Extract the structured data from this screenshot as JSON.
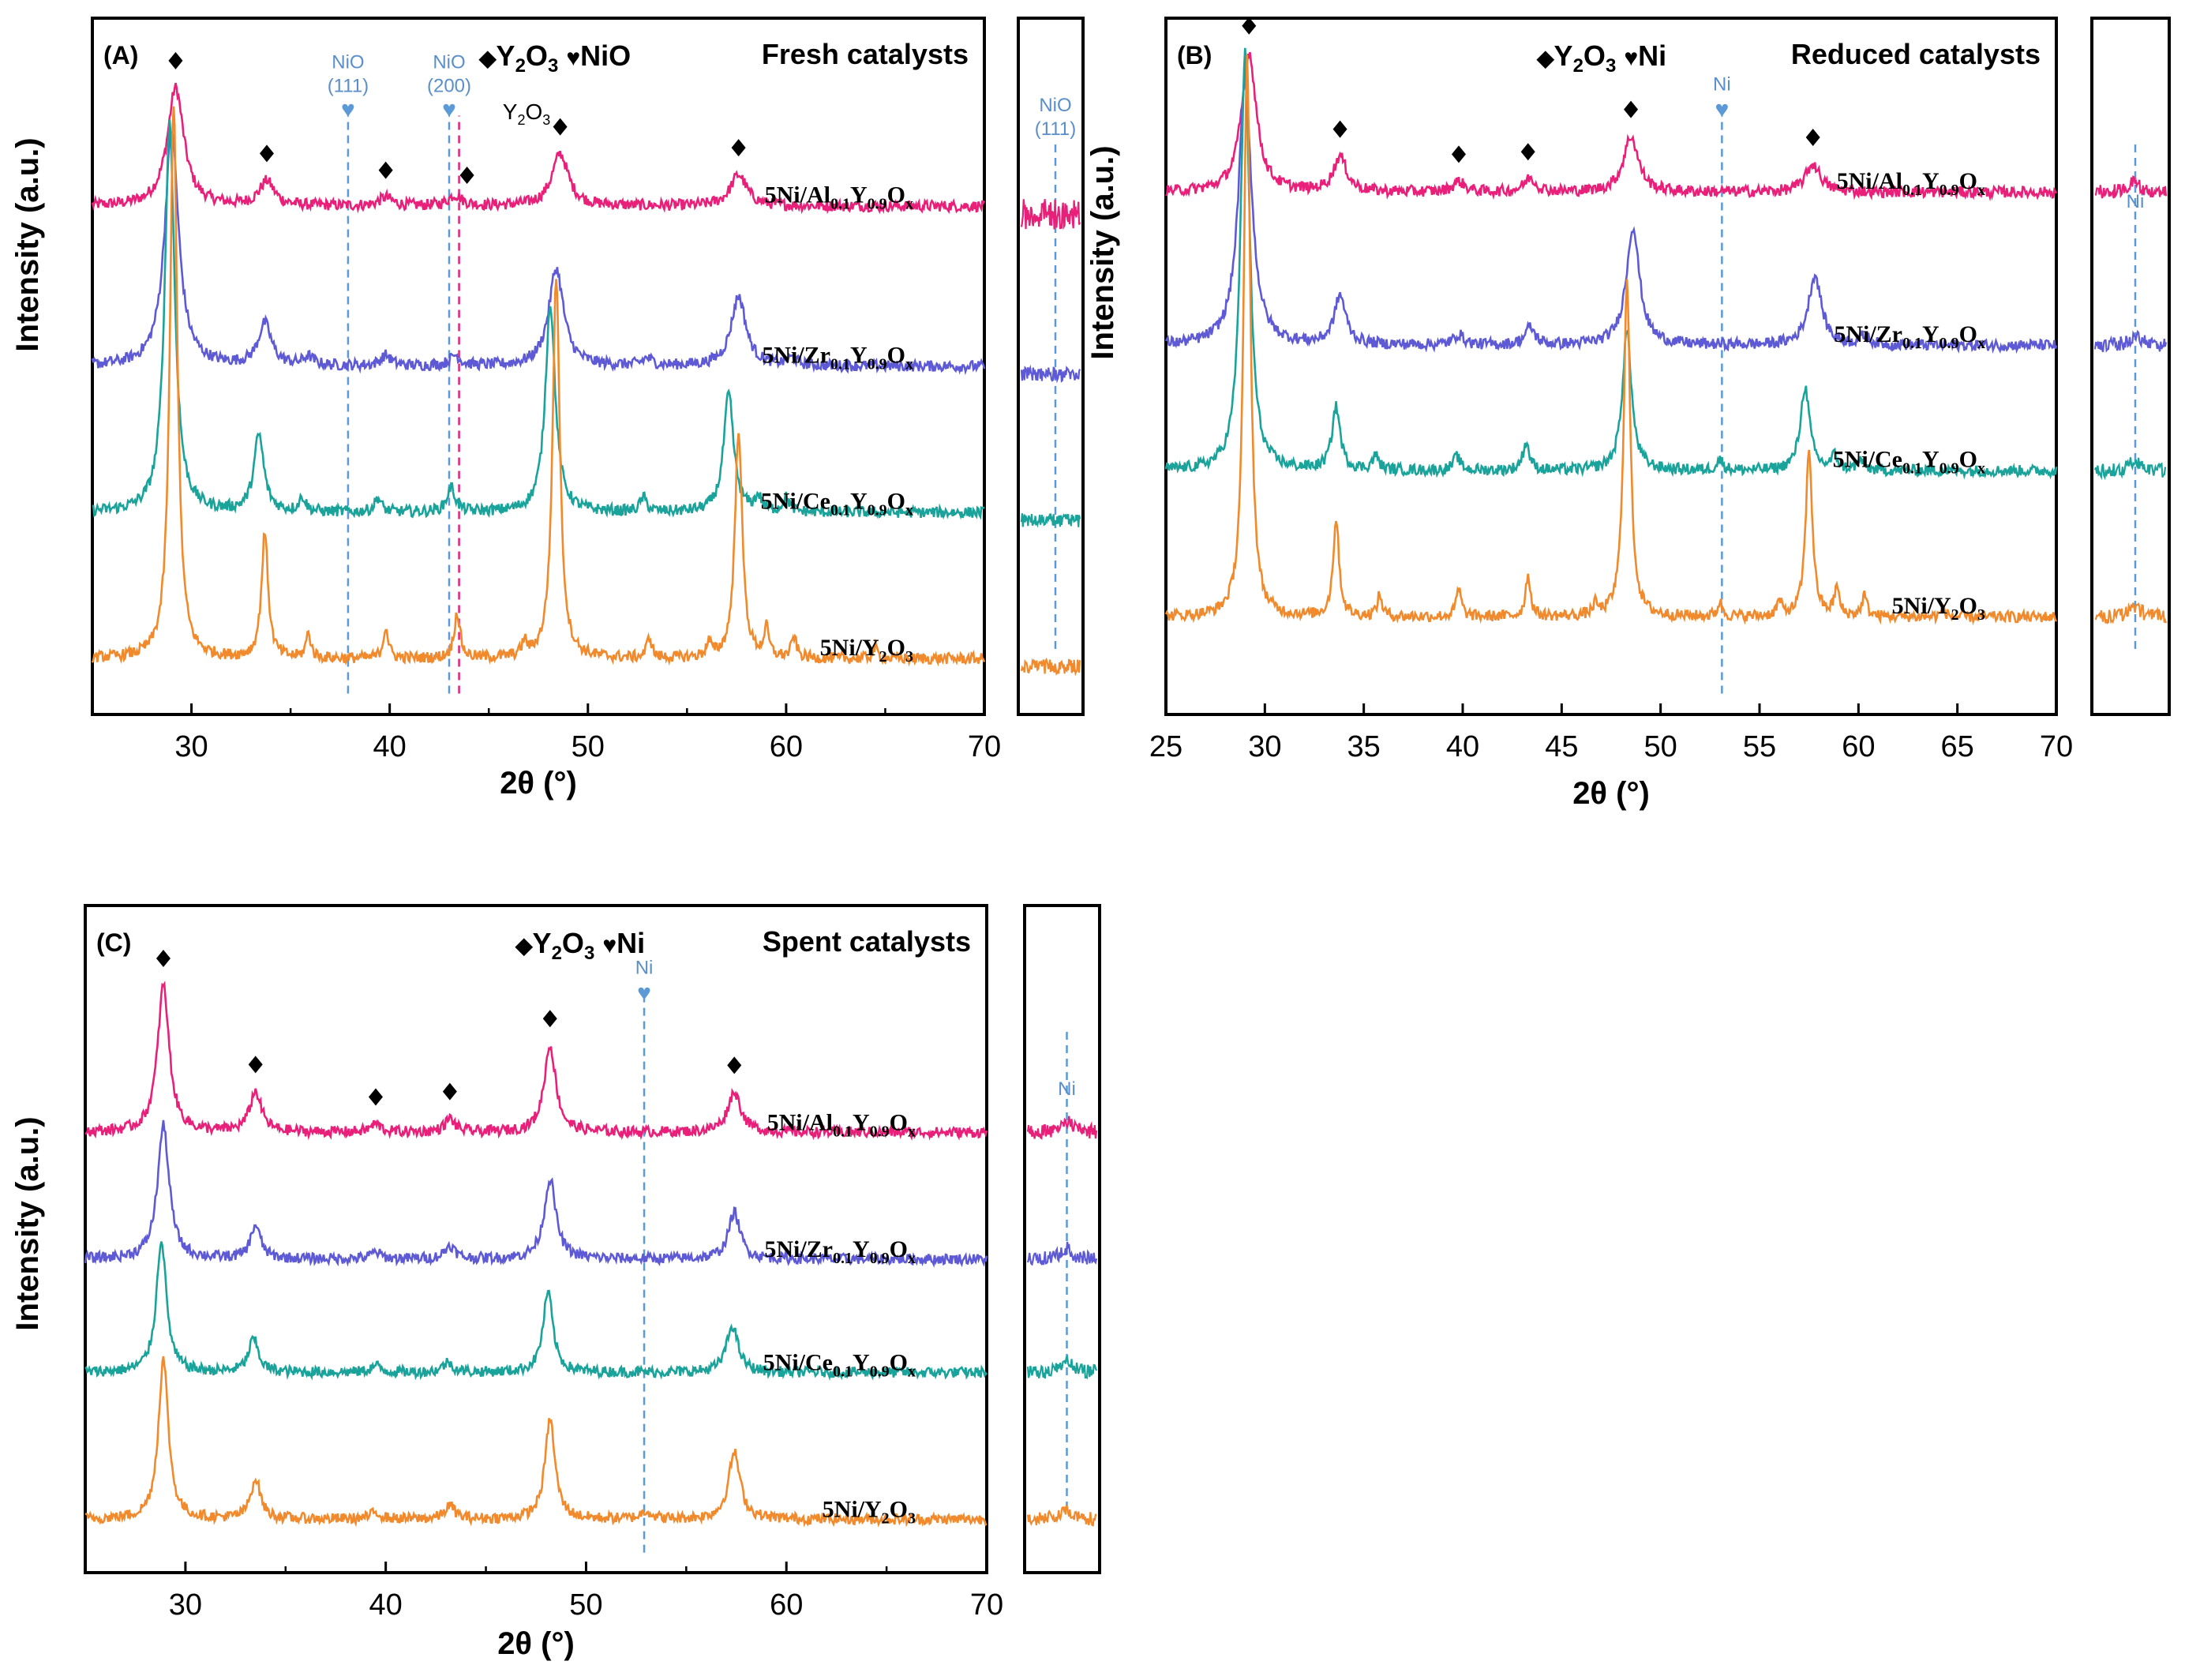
{
  "colors": {
    "pink": "#e8207a",
    "purple": "#5e5ad6",
    "teal": "#1aa39b",
    "orange": "#f08a2c",
    "ref_blue": "#5b9ad6",
    "ref_pink": "#e8207a",
    "ref_text": "#5b8fc9",
    "axis": "#000000"
  },
  "chart_data": [
    {
      "type": "line",
      "panel_label": "(A)",
      "title": "Fresh catalysts",
      "legend": {
        "y2o3_symbol": "◆",
        "y2o3_text": "Y",
        "y2o3_sub1": "2",
        "y2o3_o": "O",
        "y2o3_sub2": "3",
        "phase_symbol": "♥",
        "phase_text": "NiO"
      },
      "xlabel": "2θ (°)",
      "ylabel": "Intensity (a.u.)",
      "xlim": [
        25,
        70
      ],
      "xticks": [
        30,
        40,
        50,
        60,
        70
      ],
      "series": [
        {
          "name": "5Ni/Al0.1Y0.9Ox",
          "label_parts": [
            "5Ni/Al",
            "0.1",
            "Y",
            "0.9",
            "O",
            "x"
          ],
          "color_key": "pink",
          "baseline": 0.73,
          "peaks": [
            [
              29.2,
              0.17,
              0.5
            ],
            [
              33.8,
              0.035,
              0.45
            ],
            [
              39.8,
              0.012,
              0.4
            ],
            [
              43.3,
              0.015,
              0.4
            ],
            [
              48.6,
              0.075,
              0.5
            ],
            [
              57.6,
              0.045,
              0.5
            ]
          ]
        },
        {
          "name": "5Ni/Zr0.1Y0.9Ox",
          "label_parts": [
            "5Ni/Zr",
            "0.1",
            "Y",
            "0.9",
            "O",
            "x"
          ],
          "color_key": "purple",
          "baseline": 0.5,
          "peaks": [
            [
              29.0,
              0.34,
              0.42
            ],
            [
              33.7,
              0.06,
              0.4
            ],
            [
              35.9,
              0.012,
              0.3
            ],
            [
              39.8,
              0.015,
              0.3
            ],
            [
              43.3,
              0.015,
              0.3
            ],
            [
              48.4,
              0.14,
              0.45
            ],
            [
              53.0,
              0.01,
              0.3
            ],
            [
              57.6,
              0.1,
              0.45
            ],
            [
              60.3,
              0.01,
              0.3
            ]
          ]
        },
        {
          "name": "5Ni/Ce0.1Y0.9Ox",
          "label_parts": [
            "5Ni/Ce",
            "0.1",
            "Y",
            "0.9",
            "O",
            "x"
          ],
          "color_key": "teal",
          "baseline": 0.29,
          "peaks": [
            [
              28.9,
              0.56,
              0.3
            ],
            [
              33.4,
              0.11,
              0.3
            ],
            [
              35.6,
              0.02,
              0.2
            ],
            [
              39.4,
              0.02,
              0.2
            ],
            [
              43.1,
              0.035,
              0.25
            ],
            [
              48.1,
              0.3,
              0.3
            ],
            [
              52.8,
              0.02,
              0.2
            ],
            [
              57.1,
              0.17,
              0.3
            ],
            [
              58.6,
              0.02,
              0.2
            ],
            [
              60.0,
              0.02,
              0.2
            ]
          ]
        },
        {
          "name": "5Ni/Y2O3",
          "label_parts": [
            "5Ni/Y",
            "2",
            "O",
            "3",
            "",
            ""
          ],
          "color_key": "orange",
          "baseline": 0.08,
          "peaks": [
            [
              29.1,
              0.8,
              0.22
            ],
            [
              33.7,
              0.18,
              0.2
            ],
            [
              35.9,
              0.035,
              0.15
            ],
            [
              39.8,
              0.045,
              0.15
            ],
            [
              43.4,
              0.065,
              0.18
            ],
            [
              46.8,
              0.02,
              0.15
            ],
            [
              48.4,
              0.55,
              0.22
            ],
            [
              53.1,
              0.03,
              0.15
            ],
            [
              56.1,
              0.02,
              0.15
            ],
            [
              57.6,
              0.33,
              0.22
            ],
            [
              59.0,
              0.04,
              0.15
            ],
            [
              60.4,
              0.03,
              0.15
            ],
            [
              64.5,
              0.015,
              0.15
            ]
          ]
        }
      ],
      "diamonds": [
        29.2,
        33.8,
        39.8,
        43.9,
        48.6,
        57.6
      ],
      "ref_lines": [
        {
          "x": 37.9,
          "color_key": "ref_blue",
          "label": "NiO",
          "label2": "(111)"
        },
        {
          "x": 43.0,
          "color_key": "ref_blue",
          "label": "NiO",
          "label2": "(200)"
        },
        {
          "x": 43.5,
          "color_key": "ref_pink",
          "label": "",
          "label2": ""
        }
      ],
      "annotation_y2o3": {
        "t1": "Y",
        "s1": "2",
        "t2": "O",
        "s2": "3"
      },
      "inset": {
        "label": "NiO",
        "label2": "(111)"
      }
    },
    {
      "type": "line",
      "panel_label": "(B)",
      "title": "Reduced catalysts",
      "legend": {
        "y2o3_symbol": "◆",
        "y2o3_text": "Y",
        "y2o3_sub1": "2",
        "y2o3_o": "O",
        "y2o3_sub2": "3",
        "phase_symbol": "♥",
        "phase_text": "Ni"
      },
      "xlabel": "2θ (°)",
      "ylabel": "Intensity (a.u.)",
      "xlim": [
        25,
        70
      ],
      "xticks": [
        25,
        30,
        35,
        40,
        45,
        50,
        55,
        60,
        65,
        70
      ],
      "series": [
        {
          "name": "5Ni/Al0.1Y0.9Ox",
          "label_parts": [
            "5Ni/Al",
            "0.1",
            "Y",
            "0.9",
            "O",
            "x"
          ],
          "color_key": "pink",
          "baseline": 0.75,
          "peaks": [
            [
              29.2,
              0.2,
              0.45
            ],
            [
              33.8,
              0.05,
              0.4
            ],
            [
              39.8,
              0.015,
              0.35
            ],
            [
              43.4,
              0.02,
              0.35
            ],
            [
              48.5,
              0.08,
              0.45
            ],
            [
              57.7,
              0.04,
              0.45
            ]
          ]
        },
        {
          "name": "5Ni/Zr0.1Y0.9Ox",
          "label_parts": [
            "5Ni/Zr",
            "0.1",
            "Y",
            "0.9",
            "O",
            "x"
          ],
          "color_key": "purple",
          "baseline": 0.53,
          "peaks": [
            [
              29.0,
              0.38,
              0.4
            ],
            [
              33.8,
              0.07,
              0.35
            ],
            [
              39.8,
              0.015,
              0.3
            ],
            [
              43.4,
              0.025,
              0.3
            ],
            [
              48.6,
              0.17,
              0.4
            ],
            [
              57.8,
              0.1,
              0.4
            ],
            [
              60.3,
              0.012,
              0.3
            ]
          ]
        },
        {
          "name": "5Ni/Ce0.1Y0.9Ox",
          "label_parts": [
            "5Ni/Ce",
            "0.1",
            "Y",
            "0.9",
            "O",
            "x"
          ],
          "color_key": "teal",
          "baseline": 0.35,
          "peaks": [
            [
              29.0,
              0.6,
              0.28
            ],
            [
              33.6,
              0.09,
              0.25
            ],
            [
              35.6,
              0.02,
              0.2
            ],
            [
              39.7,
              0.02,
              0.2
            ],
            [
              43.2,
              0.04,
              0.2
            ],
            [
              48.3,
              0.2,
              0.28
            ],
            [
              53.0,
              0.015,
              0.2
            ],
            [
              57.3,
              0.12,
              0.28
            ],
            [
              58.8,
              0.02,
              0.2
            ],
            [
              60.1,
              0.015,
              0.2
            ]
          ]
        },
        {
          "name": "5Ni/Y2O3",
          "label_parts": [
            "5Ni/Y",
            "2",
            "O",
            "3",
            "",
            ""
          ],
          "color_key": "orange",
          "baseline": 0.14,
          "peaks": [
            [
              29.1,
              0.8,
              0.2
            ],
            [
              33.6,
              0.14,
              0.18
            ],
            [
              35.8,
              0.03,
              0.15
            ],
            [
              39.8,
              0.04,
              0.15
            ],
            [
              43.3,
              0.06,
              0.15
            ],
            [
              46.7,
              0.015,
              0.15
            ],
            [
              48.3,
              0.48,
              0.2
            ],
            [
              53.0,
              0.02,
              0.15
            ],
            [
              56.0,
              0.02,
              0.15
            ],
            [
              57.5,
              0.24,
              0.2
            ],
            [
              58.9,
              0.04,
              0.15
            ],
            [
              60.3,
              0.03,
              0.15
            ],
            [
              64.3,
              0.01,
              0.15
            ]
          ]
        }
      ],
      "diamonds": [
        29.2,
        33.8,
        39.8,
        43.3,
        48.5,
        57.7
      ],
      "ref_lines": [
        {
          "x": 53.1,
          "color_key": "ref_blue",
          "label": "Ni",
          "label2": ""
        }
      ],
      "annotation_y2o3": null,
      "inset": {
        "label": "Ni",
        "label2": ""
      }
    },
    {
      "type": "line",
      "panel_label": "(C)",
      "title": "Spent catalysts",
      "legend": {
        "y2o3_symbol": "◆",
        "y2o3_text": "Y",
        "y2o3_sub1": "2",
        "y2o3_o": "O",
        "y2o3_sub2": "3",
        "phase_symbol": "♥",
        "phase_text": "Ni"
      },
      "xlabel": "2θ (°)",
      "ylabel": "Intensity (a.u.)",
      "xlim": [
        25,
        70
      ],
      "xticks": [
        30,
        40,
        50,
        60,
        70
      ],
      "series": [
        {
          "name": "5Ni/Al0.1Y0.9Ox",
          "label_parts": [
            "5Ni/Al",
            "0.1",
            "Y",
            "0.9",
            "O",
            "x"
          ],
          "color_key": "pink",
          "baseline": 0.66,
          "peaks": [
            [
              28.9,
              0.22,
              0.35
            ],
            [
              33.5,
              0.06,
              0.35
            ],
            [
              39.5,
              0.012,
              0.3
            ],
            [
              43.2,
              0.02,
              0.3
            ],
            [
              48.2,
              0.13,
              0.35
            ],
            [
              57.4,
              0.06,
              0.4
            ]
          ]
        },
        {
          "name": "5Ni/Zr0.1Y0.9Ox",
          "label_parts": [
            "5Ni/Zr",
            "0.1",
            "Y",
            "0.9",
            "O",
            "x"
          ],
          "color_key": "purple",
          "baseline": 0.47,
          "peaks": [
            [
              28.9,
              0.2,
              0.35
            ],
            [
              33.5,
              0.05,
              0.3
            ],
            [
              39.5,
              0.01,
              0.3
            ],
            [
              43.2,
              0.02,
              0.3
            ],
            [
              48.2,
              0.12,
              0.35
            ],
            [
              57.4,
              0.07,
              0.35
            ]
          ]
        },
        {
          "name": "5Ni/Ce0.1Y0.9Ox",
          "label_parts": [
            "5Ni/Ce",
            "0.1",
            "Y",
            "0.9",
            "O",
            "x"
          ],
          "color_key": "teal",
          "baseline": 0.3,
          "peaks": [
            [
              28.8,
              0.2,
              0.3
            ],
            [
              33.4,
              0.05,
              0.3
            ],
            [
              39.5,
              0.01,
              0.3
            ],
            [
              43.1,
              0.015,
              0.3
            ],
            [
              48.1,
              0.12,
              0.3
            ],
            [
              57.3,
              0.07,
              0.35
            ]
          ]
        },
        {
          "name": "5Ni/Y2O3",
          "label_parts": [
            "5Ni/Y",
            "2",
            "O",
            "3",
            "",
            ""
          ],
          "color_key": "orange",
          "baseline": 0.08,
          "peaks": [
            [
              28.9,
              0.24,
              0.3
            ],
            [
              33.5,
              0.06,
              0.3
            ],
            [
              39.5,
              0.01,
              0.3
            ],
            [
              43.2,
              0.02,
              0.3
            ],
            [
              48.2,
              0.15,
              0.3
            ],
            [
              53.0,
              0.012,
              0.3
            ],
            [
              57.4,
              0.1,
              0.35
            ]
          ]
        }
      ],
      "diamonds": [
        28.9,
        33.5,
        39.5,
        43.2,
        48.2,
        57.4
      ],
      "ref_lines": [
        {
          "x": 52.9,
          "color_key": "ref_blue",
          "label": "Ni",
          "label2": ""
        }
      ],
      "annotation_y2o3": null,
      "inset": {
        "label": "Ni",
        "label2": ""
      }
    }
  ]
}
